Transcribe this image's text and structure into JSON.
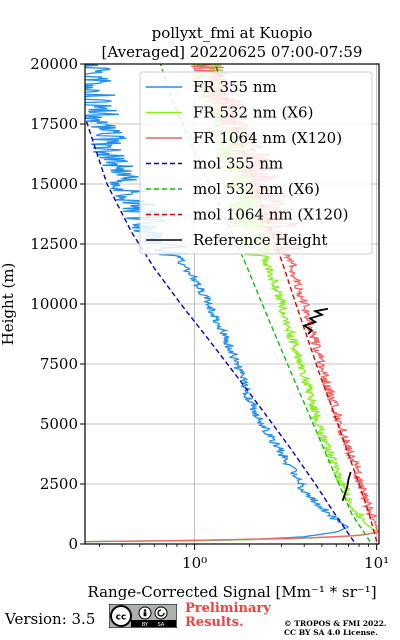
{
  "chart_data": {
    "type": "line",
    "title_line1": "pollyxt_fmi at Kuopio",
    "title_line2": "[Averaged] 20220625 07:00-07:59",
    "xlabel": "Range-Corrected Signal [Mm⁻¹ * sr⁻¹]",
    "ylabel": "Height (m)",
    "xscale": "log",
    "xlim": [
      0.25,
      10.3
    ],
    "ylim": [
      0,
      20000
    ],
    "grid": true,
    "legend_position": "upper-right",
    "yticks": [
      0,
      2500,
      5000,
      7500,
      10000,
      12500,
      15000,
      17500,
      20000
    ],
    "ytick_labels": [
      "0",
      "2500",
      "5000",
      "7500",
      "10000",
      "12500",
      "15000",
      "17500",
      "20000"
    ],
    "xtick_labels": [
      "10⁰",
      "10¹"
    ],
    "series": [
      {
        "name": "FR 355 nm",
        "style": "solid",
        "color": "#1f8ff0",
        "points": [
          [
            0.25,
            100
          ],
          [
            0.7,
            120
          ],
          [
            2.0,
            180
          ],
          [
            4.0,
            300
          ],
          [
            6.0,
            500
          ],
          [
            7.0,
            700
          ],
          [
            6.0,
            1000
          ],
          [
            5.0,
            1500
          ],
          [
            4.0,
            2200
          ],
          [
            3.5,
            3000
          ],
          [
            3.0,
            3800
          ],
          [
            2.6,
            4500
          ],
          [
            2.3,
            5200
          ],
          [
            2.0,
            6000
          ],
          [
            1.8,
            7000
          ],
          [
            1.6,
            8000
          ],
          [
            1.4,
            9000
          ],
          [
            1.2,
            10000
          ],
          [
            1.0,
            11000
          ],
          [
            0.8,
            12000
          ],
          [
            0.6,
            13000
          ],
          [
            0.5,
            14000
          ],
          [
            0.42,
            15000
          ],
          [
            0.37,
            16000
          ],
          [
            0.33,
            17000
          ],
          [
            0.3,
            18000
          ],
          [
            0.28,
            19000
          ],
          [
            0.27,
            20000
          ]
        ]
      },
      {
        "name": "FR 532 nm (X6)",
        "style": "solid",
        "color": "#88ee22",
        "points": [
          [
            0.25,
            100
          ],
          [
            1.0,
            150
          ],
          [
            3.0,
            200
          ],
          [
            6.0,
            300
          ],
          [
            9.0,
            400
          ],
          [
            10.0,
            500
          ],
          [
            8.5,
            900
          ],
          [
            7.5,
            1500
          ],
          [
            6.8,
            2200
          ],
          [
            6.0,
            3000
          ],
          [
            5.4,
            4000
          ],
          [
            4.8,
            5000
          ],
          [
            4.4,
            6000
          ],
          [
            4.0,
            7000
          ],
          [
            3.6,
            8000
          ],
          [
            3.3,
            9000
          ],
          [
            3.0,
            10000
          ],
          [
            2.7,
            11000
          ],
          [
            2.4,
            12000
          ],
          [
            2.2,
            12500
          ],
          [
            2.0,
            13500
          ],
          [
            1.8,
            15000
          ],
          [
            1.6,
            16500
          ],
          [
            1.4,
            18000
          ],
          [
            1.2,
            19500
          ],
          [
            1.1,
            20000
          ]
        ]
      },
      {
        "name": "FR 1064 nm (X120)",
        "style": "solid",
        "color": "#f46464",
        "points": [
          [
            0.25,
            100
          ],
          [
            1.0,
            150
          ],
          [
            4.0,
            250
          ],
          [
            8.0,
            350
          ],
          [
            10.2,
            500
          ],
          [
            9.8,
            900
          ],
          [
            9.0,
            1500
          ],
          [
            8.4,
            2200
          ],
          [
            7.8,
            3000
          ],
          [
            7.0,
            4000
          ],
          [
            6.3,
            5000
          ],
          [
            5.7,
            6000
          ],
          [
            5.2,
            7000
          ],
          [
            4.8,
            8000
          ],
          [
            4.4,
            9000
          ],
          [
            4.0,
            10000
          ],
          [
            3.6,
            11000
          ],
          [
            3.3,
            12000
          ],
          [
            3.0,
            13000
          ],
          [
            2.7,
            14000
          ],
          [
            2.4,
            15000
          ],
          [
            2.1,
            16000
          ],
          [
            1.8,
            17000
          ],
          [
            1.55,
            18000
          ],
          [
            1.35,
            19000
          ],
          [
            1.2,
            20000
          ]
        ]
      },
      {
        "name": "mol 355 nm",
        "style": "dashed",
        "color": "#0000cc",
        "points": [
          [
            7.5,
            100
          ],
          [
            5.9,
            1250
          ],
          [
            4.6,
            2500
          ],
          [
            3.35,
            4000
          ],
          [
            2.4,
            5500
          ],
          [
            1.7,
            7000
          ],
          [
            1.2,
            8500
          ],
          [
            0.84,
            10000
          ],
          [
            0.6,
            11500
          ],
          [
            0.45,
            13000
          ],
          [
            0.33,
            15000
          ],
          [
            0.25,
            17800
          ]
        ]
      },
      {
        "name": "mol 532 nm (X6)",
        "style": "dashed",
        "color": "#11bb11",
        "points": [
          [
            9.2,
            100
          ],
          [
            7.3,
            1250
          ],
          [
            6.2,
            2500
          ],
          [
            5.1,
            4000
          ],
          [
            4.2,
            5500
          ],
          [
            3.45,
            7000
          ],
          [
            2.85,
            8500
          ],
          [
            2.35,
            10000
          ],
          [
            1.95,
            11500
          ],
          [
            1.6,
            13000
          ],
          [
            1.2,
            15000
          ],
          [
            0.92,
            17000
          ],
          [
            0.75,
            18500
          ],
          [
            0.65,
            20000
          ]
        ]
      },
      {
        "name": "mol 1064 nm (X120)",
        "style": "dashed",
        "color": "#dd0000",
        "points": [
          [
            10.0,
            100
          ],
          [
            9.1,
            1250
          ],
          [
            8.0,
            2500
          ],
          [
            6.8,
            4000
          ],
          [
            5.8,
            5500
          ],
          [
            4.9,
            7000
          ],
          [
            4.2,
            8500
          ],
          [
            3.6,
            10000
          ],
          [
            3.1,
            11500
          ],
          [
            2.65,
            13000
          ],
          [
            2.15,
            15000
          ],
          [
            1.75,
            17000
          ],
          [
            1.5,
            18500
          ],
          [
            1.3,
            20000
          ]
        ]
      },
      {
        "name": "Reference Height",
        "style": "solid",
        "color": "#000000",
        "segments": [
          [
            [
              4.2,
              8750
            ],
            [
              4.4,
              8900
            ],
            [
              4.0,
              9100
            ],
            [
              4.6,
              9250
            ],
            [
              4.3,
              9400
            ],
            [
              5.0,
              9550
            ],
            [
              4.6,
              9700
            ],
            [
              5.4,
              9800
            ]
          ],
          [
            [
              6.5,
              1800
            ],
            [
              6.7,
              2100
            ],
            [
              6.9,
              2400
            ],
            [
              7.0,
              2700
            ],
            [
              7.2,
              3000
            ]
          ]
        ]
      }
    ]
  },
  "footer": {
    "version": "Version: 3.5",
    "license_badge_text": [
      "BY",
      "SA"
    ],
    "preliminary_line1": "Preliminary",
    "preliminary_line2": "Results.",
    "copyright_line1": "© TROPOS & FMI 2022.",
    "copyright_line2": "CC BY SA 4.0 License."
  }
}
